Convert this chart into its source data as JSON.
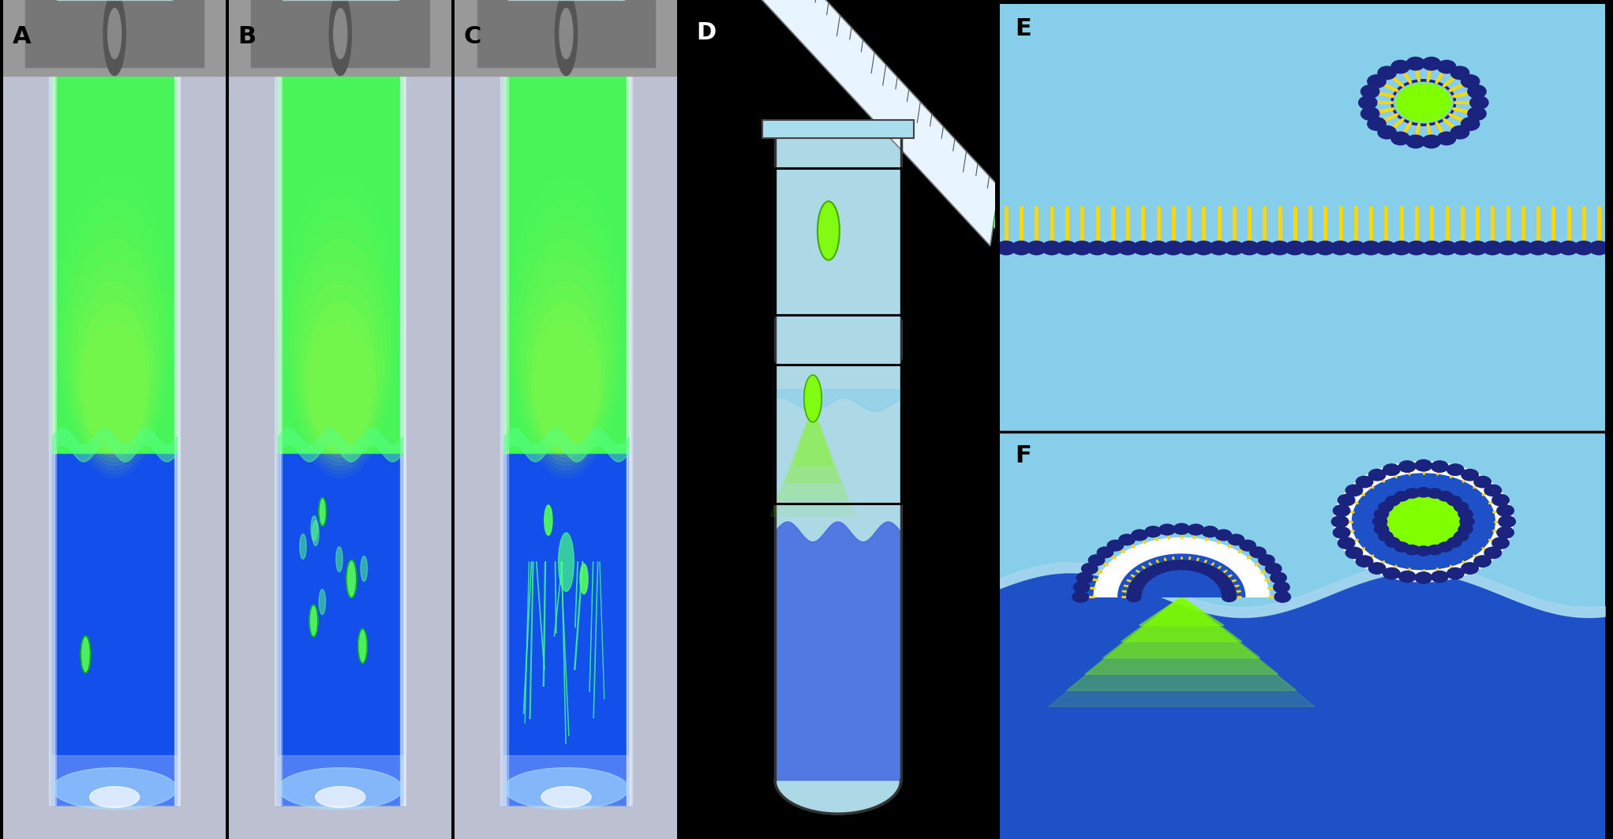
{
  "fig_width": 20.44,
  "fig_height": 10.63,
  "dpi": 100,
  "background_color": "#000000",
  "panel_labels": [
    "A",
    "B",
    "C",
    "D",
    "E",
    "F"
  ],
  "label_fontsize": 22,
  "label_fontweight": "bold",
  "photo_bg": "#C8C8D8",
  "tube_glass": "#E0F0FF",
  "tube_green": "#44FF44",
  "tube_blue": "#0044DD",
  "tube_bottom_glow": "#AADDFF",
  "clamp_color": "#888888",
  "bubble_green": "#55FF55",
  "E_bg": "#87CEEB",
  "E_bg2": "#A8D8EA",
  "F_bg_dark": "#1E3FAF",
  "F_bg_light": "#6BAED6",
  "wave_blue": "#2255CC",
  "yellow": "#FFD700",
  "navy": "#1a237e",
  "white": "#FFFFFF",
  "lime": "#7FFF00"
}
